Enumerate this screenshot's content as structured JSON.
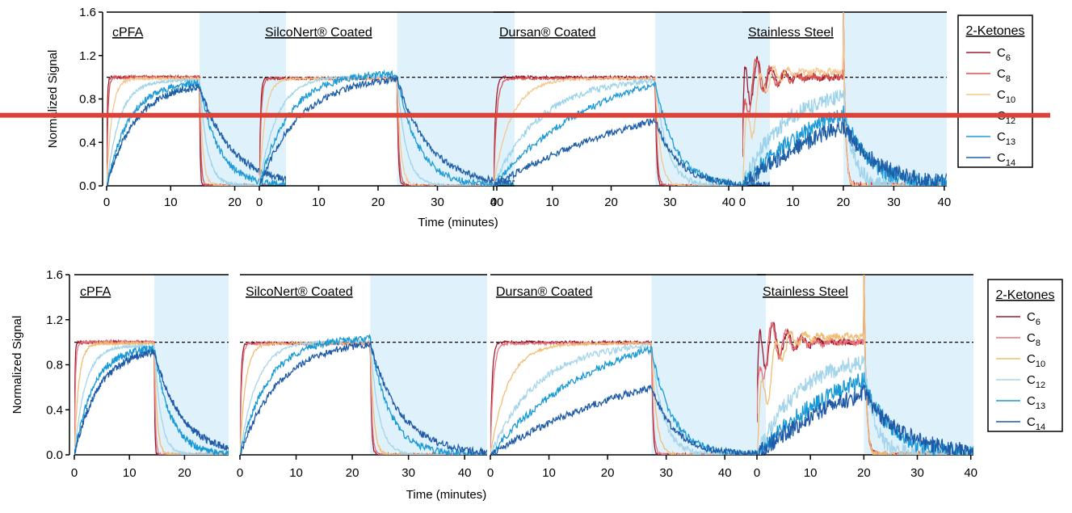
{
  "chart_data": [
    {
      "type": "line",
      "figure": "top",
      "ylabel": "Normalized Signal",
      "xlabel": "Time (minutes)",
      "ylim": [
        0,
        1.6
      ],
      "yticks": [
        "0.0",
        "0.4",
        "0.8",
        "1.2",
        "1.6"
      ],
      "reference_line": 1.0,
      "legend": {
        "title": "2-Ketones",
        "entries": [
          {
            "base": "C",
            "sub": "6",
            "color": "#9e1b32"
          },
          {
            "base": "C",
            "sub": "8",
            "color": "#d9534f"
          },
          {
            "base": "C",
            "sub": "10",
            "color": "#f5c68e"
          },
          {
            "base": "C",
            "sub": "12",
            "color": "#9dd3ea"
          },
          {
            "base": "C",
            "sub": "13",
            "color": "#1f9bd7"
          },
          {
            "base": "C",
            "sub": "14",
            "color": "#1f5fa8"
          }
        ]
      },
      "highlight_band_color": "#dff1fb",
      "annotation_bar": {
        "color": "#d9433a",
        "y": 0.65
      },
      "panels": [
        {
          "title": "cPFA",
          "xlim": [
            0,
            28
          ],
          "xticks": [
            "0",
            "10",
            "20"
          ],
          "switch_time": 14.5,
          "overshoot": 0,
          "series": [
            {
              "name": "C6",
              "tau": 0.1,
              "plateau": 1.0,
              "decay": 0.1
            },
            {
              "name": "C8",
              "tau": 0.2,
              "plateau": 1.0,
              "decay": 0.2
            },
            {
              "name": "C10",
              "tau": 0.8,
              "plateau": 0.99,
              "decay": 0.5
            },
            {
              "name": "C12",
              "tau": 2.0,
              "plateau": 0.97,
              "decay": 1.2
            },
            {
              "name": "C13",
              "tau": 3.5,
              "plateau": 0.96,
              "decay": 3.0
            },
            {
              "name": "C14",
              "tau": 4.5,
              "plateau": 0.95,
              "decay": 5.0
            }
          ]
        },
        {
          "title": "SilcoNert® Coated",
          "xlim": [
            0,
            43
          ],
          "xticks": [
            "0",
            "10",
            "20",
            "30",
            "40"
          ],
          "switch_time": 23.2,
          "overshoot": 0,
          "series": [
            {
              "name": "C6",
              "tau": 0.2,
              "plateau": 0.99,
              "decay": 0.2
            },
            {
              "name": "C8",
              "tau": 0.3,
              "plateau": 0.99,
              "decay": 0.3
            },
            {
              "name": "C10",
              "tau": 1.0,
              "plateau": 0.99,
              "decay": 0.6
            },
            {
              "name": "C12",
              "tau": 3.0,
              "plateau": 1.01,
              "decay": 1.5
            },
            {
              "name": "C13",
              "tau": 5.0,
              "plateau": 1.04,
              "decay": 3.5
            },
            {
              "name": "C14",
              "tau": 7.0,
              "plateau": 1.02,
              "decay": 5.5
            }
          ]
        },
        {
          "title": "Dursan® Coated",
          "xlim": [
            0,
            47
          ],
          "xticks": [
            "0",
            "10",
            "20",
            "30",
            "40"
          ],
          "switch_time": 27.5,
          "overshoot": 0,
          "series": [
            {
              "name": "C6",
              "tau": 0.3,
              "plateau": 1.0,
              "decay": 0.2
            },
            {
              "name": "C8",
              "tau": 0.5,
              "plateau": 0.99,
              "decay": 0.3
            },
            {
              "name": "C10",
              "tau": 3.0,
              "plateau": 0.99,
              "decay": 0.8
            },
            {
              "name": "C12",
              "tau": 8.0,
              "plateau": 1.0,
              "decay": 2.0
            },
            {
              "name": "C13",
              "tau": 18.0,
              "plateau": 1.2,
              "decay": 3.5
            },
            {
              "name": "C14",
              "tau": 30.0,
              "plateau": 1.0,
              "decay": 4.0
            }
          ]
        },
        {
          "title": "Stainless Steel",
          "xlim": [
            0,
            40.5
          ],
          "xticks": [
            "0",
            "10",
            "20",
            "30",
            "40"
          ],
          "switch_time": 20.0,
          "overshoot": 1,
          "series": [
            {
              "name": "C6",
              "tau": 0.3,
              "plateau": 1.0,
              "decay": 0.2
            },
            {
              "name": "C8",
              "tau": 0.5,
              "plateau": 1.0,
              "decay": 0.3
            },
            {
              "name": "C10",
              "tau": 2.0,
              "plateau": 1.05,
              "decay": 0.5
            },
            {
              "name": "C12",
              "tau": 8.0,
              "plateau": 0.9,
              "decay": 2.0
            },
            {
              "name": "C13",
              "tau": 18.0,
              "plateau": 1.0,
              "decay": 5.0
            },
            {
              "name": "C14",
              "tau": 25.0,
              "plateau": 1.0,
              "decay": 7.0
            }
          ]
        }
      ]
    },
    {
      "type": "line",
      "figure": "bottom",
      "ylabel": "Normalized Signal",
      "xlabel": "Time (minutes)",
      "ylim": [
        0,
        1.6
      ],
      "yticks": [
        "0.0",
        "0.4",
        "0.8",
        "1.2",
        "1.6"
      ],
      "reference_line": 1.0,
      "legend": {
        "title": "2-Ketones",
        "entries": [
          {
            "base": "C",
            "sub": "6",
            "color": "#9e1b32"
          },
          {
            "base": "C",
            "sub": "8",
            "color": "#e8737a"
          },
          {
            "base": "C",
            "sub": "10",
            "color": "#f1bd72"
          },
          {
            "base": "C",
            "sub": "12",
            "color": "#a5d5eb"
          },
          {
            "base": "C",
            "sub": "13",
            "color": "#199ad6"
          },
          {
            "base": "C",
            "sub": "14",
            "color": "#1e5aa8"
          }
        ]
      },
      "highlight_band_color": "#dff1fb",
      "panels": [
        {
          "title": "cPFA",
          "xlim": [
            0,
            28
          ],
          "xticks": [
            "0",
            "10",
            "20"
          ],
          "switch_time": 14.5,
          "overshoot": 0,
          "series": [
            {
              "name": "C6",
              "tau": 0.1,
              "plateau": 1.0,
              "decay": 0.1
            },
            {
              "name": "C8",
              "tau": 0.2,
              "plateau": 1.0,
              "decay": 0.2
            },
            {
              "name": "C10",
              "tau": 0.8,
              "plateau": 0.99,
              "decay": 0.5
            },
            {
              "name": "C12",
              "tau": 2.0,
              "plateau": 0.97,
              "decay": 1.2
            },
            {
              "name": "C13",
              "tau": 3.5,
              "plateau": 0.96,
              "decay": 3.0
            },
            {
              "name": "C14",
              "tau": 4.5,
              "plateau": 0.95,
              "decay": 5.0
            }
          ]
        },
        {
          "title": "SilcoNert® Coated",
          "xlim": [
            0,
            44
          ],
          "xticks": [
            "0",
            "10",
            "20",
            "30",
            "40"
          ],
          "switch_time": 23.2,
          "overshoot": 0,
          "series": [
            {
              "name": "C6",
              "tau": 0.2,
              "plateau": 0.99,
              "decay": 0.2
            },
            {
              "name": "C8",
              "tau": 0.3,
              "plateau": 0.99,
              "decay": 0.3
            },
            {
              "name": "C10",
              "tau": 1.0,
              "plateau": 0.99,
              "decay": 0.6
            },
            {
              "name": "C12",
              "tau": 3.0,
              "plateau": 1.01,
              "decay": 1.5
            },
            {
              "name": "C13",
              "tau": 5.0,
              "plateau": 1.04,
              "decay": 3.5
            },
            {
              "name": "C14",
              "tau": 7.0,
              "plateau": 1.02,
              "decay": 5.5
            }
          ]
        },
        {
          "title": "Dursan® Coated",
          "xlim": [
            0,
            47
          ],
          "xticks": [
            "0",
            "10",
            "20",
            "30",
            "40"
          ],
          "switch_time": 27.5,
          "overshoot": 0,
          "series": [
            {
              "name": "C6",
              "tau": 0.3,
              "plateau": 1.0,
              "decay": 0.2
            },
            {
              "name": "C8",
              "tau": 0.5,
              "plateau": 0.99,
              "decay": 0.3
            },
            {
              "name": "C10",
              "tau": 3.0,
              "plateau": 0.99,
              "decay": 0.8
            },
            {
              "name": "C12",
              "tau": 8.0,
              "plateau": 1.0,
              "decay": 2.0
            },
            {
              "name": "C13",
              "tau": 18.0,
              "plateau": 1.2,
              "decay": 3.5
            },
            {
              "name": "C14",
              "tau": 30.0,
              "plateau": 1.0,
              "decay": 4.0
            }
          ]
        },
        {
          "title": "Stainless Steel",
          "xlim": [
            0,
            40.5
          ],
          "xticks": [
            "0",
            "10",
            "20",
            "30",
            "40"
          ],
          "switch_time": 20.0,
          "overshoot": 1,
          "series": [
            {
              "name": "C6",
              "tau": 0.3,
              "plateau": 1.0,
              "decay": 0.2
            },
            {
              "name": "C8",
              "tau": 0.5,
              "plateau": 1.0,
              "decay": 0.3
            },
            {
              "name": "C10",
              "tau": 2.0,
              "plateau": 1.05,
              "decay": 0.5
            },
            {
              "name": "C12",
              "tau": 8.0,
              "plateau": 0.9,
              "decay": 2.0
            },
            {
              "name": "C13",
              "tau": 18.0,
              "plateau": 1.0,
              "decay": 5.0
            },
            {
              "name": "C14",
              "tau": 25.0,
              "plateau": 1.0,
              "decay": 7.0
            }
          ]
        }
      ]
    }
  ]
}
